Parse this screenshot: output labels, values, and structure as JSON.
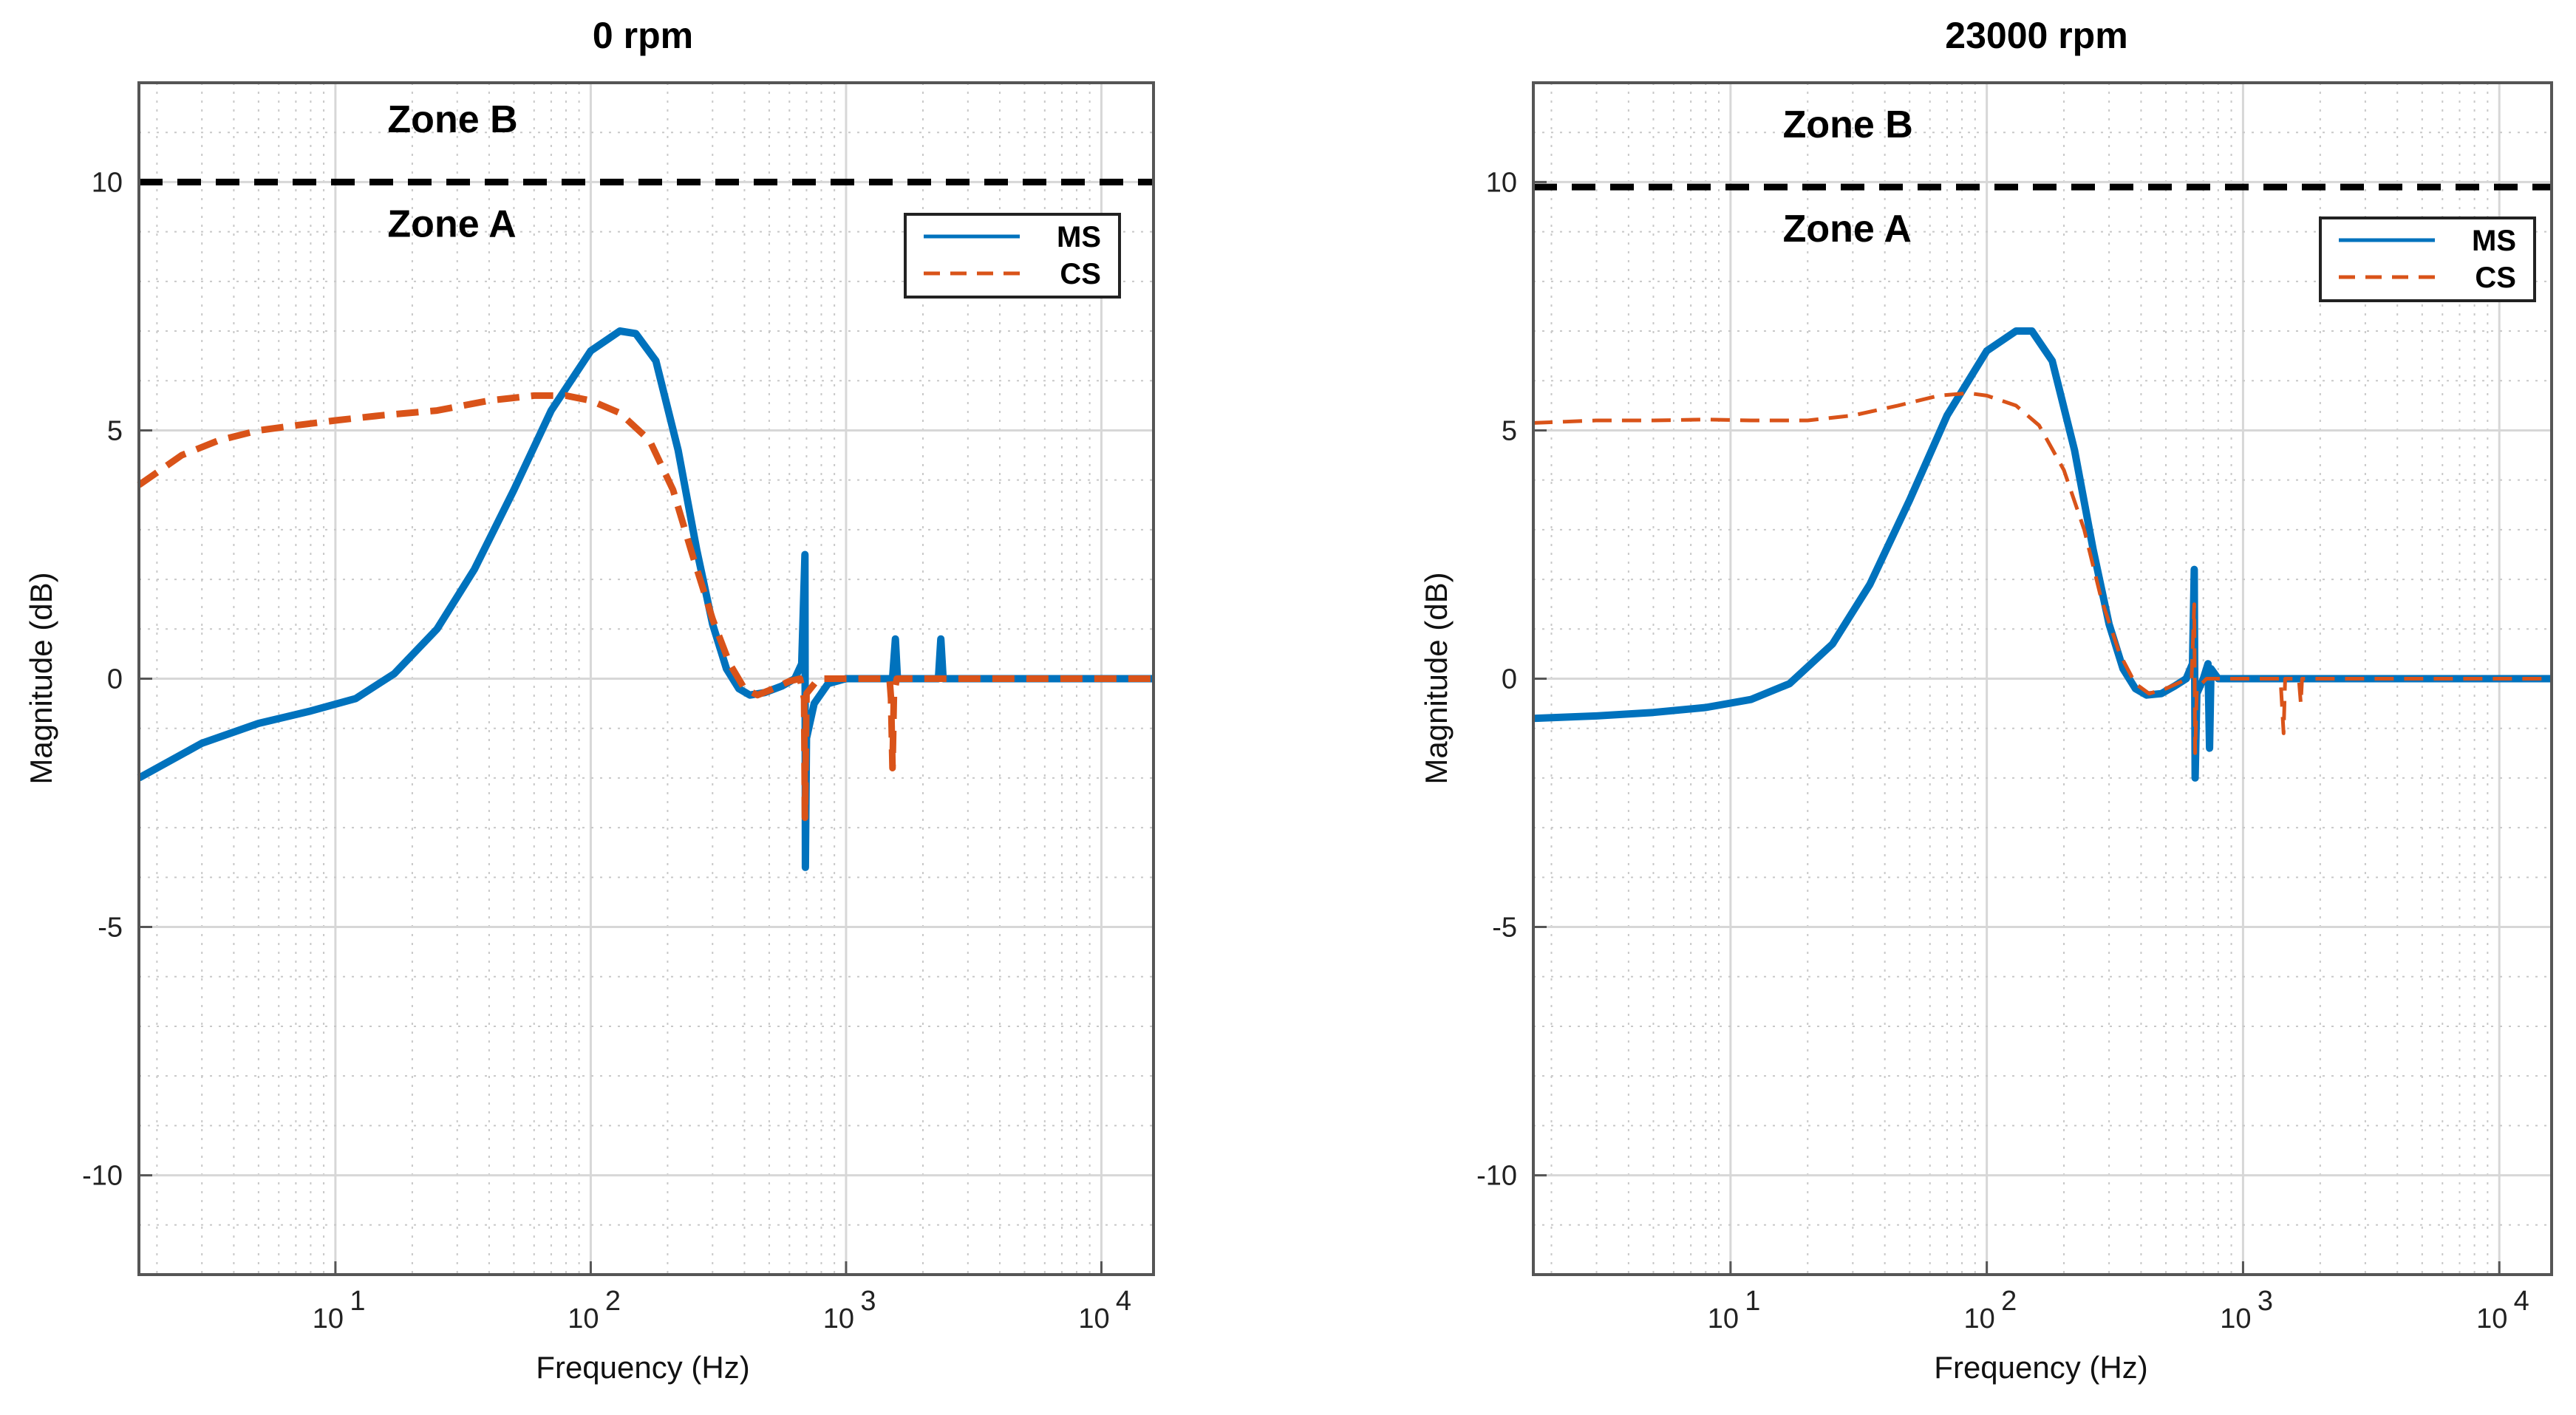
{
  "colors": {
    "ms": "#0072BD",
    "cs": "#D95319",
    "threshold": "#000000",
    "grid_major": "#d7d7d7",
    "grid_minor": "#c8c8c8",
    "axes": "#555555"
  },
  "chart_data": [
    {
      "type": "line",
      "title": "0 rpm",
      "xlabel": "Frequency  (Hz)",
      "ylabel": "Magnitude (dB)",
      "xscale": "log",
      "xlim": [
        1.7,
        16000
      ],
      "ylim": [
        -12,
        12
      ],
      "grid": true,
      "xticks": [
        {
          "value": 10,
          "base": "10",
          "exp": "1"
        },
        {
          "value": 100,
          "base": "10",
          "exp": "2"
        },
        {
          "value": 1000,
          "base": "10",
          "exp": "3"
        },
        {
          "value": 10000,
          "base": "10",
          "exp": "4"
        }
      ],
      "yticks": [
        {
          "value": -10,
          "label": "-10"
        },
        {
          "value": -5,
          "label": "-5"
        },
        {
          "value": 0,
          "label": "0"
        },
        {
          "value": 5,
          "label": "5"
        },
        {
          "value": 10,
          "label": "10"
        }
      ],
      "threshold_db": 10,
      "annotations": [
        {
          "text": "Zone B",
          "x": 16,
          "y": 11
        },
        {
          "text": "Zone A",
          "x": 16,
          "y": 8.9
        }
      ],
      "legend": {
        "position": "top-right",
        "entries": [
          "MS",
          "CS"
        ]
      },
      "series": [
        {
          "name": "MS",
          "style": "solid",
          "points": [
            [
              1.7,
              -2.0
            ],
            [
              3,
              -1.3
            ],
            [
              5,
              -0.9
            ],
            [
              8,
              -0.65
            ],
            [
              12,
              -0.4
            ],
            [
              17,
              0.1
            ],
            [
              25,
              1.0
            ],
            [
              35,
              2.2
            ],
            [
              50,
              3.8
            ],
            [
              70,
              5.4
            ],
            [
              100,
              6.6
            ],
            [
              130,
              7.0
            ],
            [
              150,
              6.95
            ],
            [
              180,
              6.4
            ],
            [
              220,
              4.6
            ],
            [
              260,
              2.6
            ],
            [
              300,
              1.1
            ],
            [
              340,
              0.2
            ],
            [
              380,
              -0.2
            ],
            [
              420,
              -0.33
            ],
            [
              480,
              -0.28
            ],
            [
              560,
              -0.15
            ],
            [
              630,
              0
            ],
            [
              670,
              0.3
            ],
            [
              690,
              2.5
            ],
            [
              693,
              -3.8
            ],
            [
              700,
              -1.2
            ],
            [
              750,
              -0.5
            ],
            [
              850,
              -0.1
            ],
            [
              1000,
              0
            ],
            [
              1520,
              0
            ],
            [
              1560,
              0.8
            ],
            [
              1590,
              0
            ],
            [
              2300,
              0
            ],
            [
              2350,
              0.8
            ],
            [
              2400,
              0
            ],
            [
              16000,
              0
            ]
          ]
        },
        {
          "name": "CS",
          "style": "dashed",
          "points": [
            [
              1.7,
              3.9
            ],
            [
              2.5,
              4.5
            ],
            [
              3.5,
              4.8
            ],
            [
              5,
              5.0
            ],
            [
              7,
              5.1
            ],
            [
              10,
              5.2
            ],
            [
              15,
              5.3
            ],
            [
              25,
              5.4
            ],
            [
              40,
              5.6
            ],
            [
              60,
              5.7
            ],
            [
              80,
              5.7
            ],
            [
              100,
              5.6
            ],
            [
              130,
              5.35
            ],
            [
              170,
              4.8
            ],
            [
              210,
              3.8
            ],
            [
              250,
              2.5
            ],
            [
              300,
              1.2
            ],
            [
              350,
              0.3
            ],
            [
              400,
              -0.2
            ],
            [
              450,
              -0.33
            ],
            [
              520,
              -0.2
            ],
            [
              600,
              -0.05
            ],
            [
              660,
              0
            ],
            [
              685,
              -0.4
            ],
            [
              690,
              -2.8
            ],
            [
              700,
              -0.3
            ],
            [
              780,
              0
            ],
            [
              1000,
              0
            ],
            [
              1480,
              0
            ],
            [
              1500,
              -0.4
            ],
            [
              1520,
              -1.8
            ],
            [
              1540,
              -0.3
            ],
            [
              1580,
              0
            ],
            [
              16000,
              0
            ]
          ]
        }
      ]
    },
    {
      "type": "line",
      "title": "23000 rpm",
      "xlabel": "Frequency  (Hz)",
      "ylabel": "Magnitude (dB)",
      "xscale": "log",
      "xlim": [
        1.7,
        16000
      ],
      "ylim": [
        -12,
        12
      ],
      "grid": true,
      "xticks": [
        {
          "value": 10,
          "base": "10",
          "exp": "1"
        },
        {
          "value": 100,
          "base": "10",
          "exp": "2"
        },
        {
          "value": 1000,
          "base": "10",
          "exp": "3"
        },
        {
          "value": 10000,
          "base": "10",
          "exp": "4"
        }
      ],
      "yticks": [
        {
          "value": -10,
          "label": "-10"
        },
        {
          "value": -5,
          "label": "-5"
        },
        {
          "value": 0,
          "label": "0"
        },
        {
          "value": 5,
          "label": "5"
        },
        {
          "value": 10,
          "label": "10"
        }
      ],
      "threshold_db": 9.9,
      "annotations": [
        {
          "text": "Zone B",
          "x": 16,
          "y": 10.9
        },
        {
          "text": "Zone A",
          "x": 16,
          "y": 8.8
        }
      ],
      "legend": {
        "position": "top-right",
        "entries": [
          "MS",
          "CS"
        ]
      },
      "series": [
        {
          "name": "MS",
          "style": "solid",
          "points": [
            [
              1.7,
              -0.8
            ],
            [
              3,
              -0.75
            ],
            [
              5,
              -0.68
            ],
            [
              8,
              -0.58
            ],
            [
              12,
              -0.42
            ],
            [
              17,
              -0.1
            ],
            [
              25,
              0.7
            ],
            [
              35,
              1.9
            ],
            [
              50,
              3.6
            ],
            [
              70,
              5.3
            ],
            [
              100,
              6.6
            ],
            [
              130,
              7.0
            ],
            [
              150,
              7.0
            ],
            [
              180,
              6.4
            ],
            [
              220,
              4.6
            ],
            [
              260,
              2.6
            ],
            [
              300,
              1.1
            ],
            [
              340,
              0.2
            ],
            [
              380,
              -0.2
            ],
            [
              420,
              -0.33
            ],
            [
              480,
              -0.3
            ],
            [
              540,
              -0.15
            ],
            [
              600,
              0
            ],
            [
              635,
              0.3
            ],
            [
              645,
              2.2
            ],
            [
              650,
              -2.0
            ],
            [
              660,
              -0.3
            ],
            [
              700,
              0
            ],
            [
              730,
              0.3
            ],
            [
              740,
              -1.4
            ],
            [
              750,
              0.2
            ],
            [
              800,
              0
            ],
            [
              16000,
              0
            ]
          ]
        },
        {
          "name": "CS",
          "style": "dashed",
          "points": [
            [
              1.7,
              5.15
            ],
            [
              3,
              5.2
            ],
            [
              5,
              5.2
            ],
            [
              8,
              5.22
            ],
            [
              12,
              5.2
            ],
            [
              20,
              5.2
            ],
            [
              30,
              5.3
            ],
            [
              45,
              5.5
            ],
            [
              65,
              5.7
            ],
            [
              85,
              5.75
            ],
            [
              100,
              5.7
            ],
            [
              130,
              5.5
            ],
            [
              160,
              5.1
            ],
            [
              200,
              4.2
            ],
            [
              240,
              3.0
            ],
            [
              280,
              1.6
            ],
            [
              330,
              0.5
            ],
            [
              380,
              -0.1
            ],
            [
              430,
              -0.3
            ],
            [
              500,
              -0.2
            ],
            [
              580,
              -0.05
            ],
            [
              630,
              0
            ],
            [
              645,
              1.5
            ],
            [
              650,
              -1.5
            ],
            [
              660,
              -0.2
            ],
            [
              720,
              0
            ],
            [
              1400,
              0
            ],
            [
              1440,
              -1.1
            ],
            [
              1460,
              0
            ],
            [
              1650,
              0
            ],
            [
              1680,
              -0.5
            ],
            [
              1700,
              0
            ],
            [
              16000,
              0
            ]
          ]
        }
      ]
    }
  ]
}
